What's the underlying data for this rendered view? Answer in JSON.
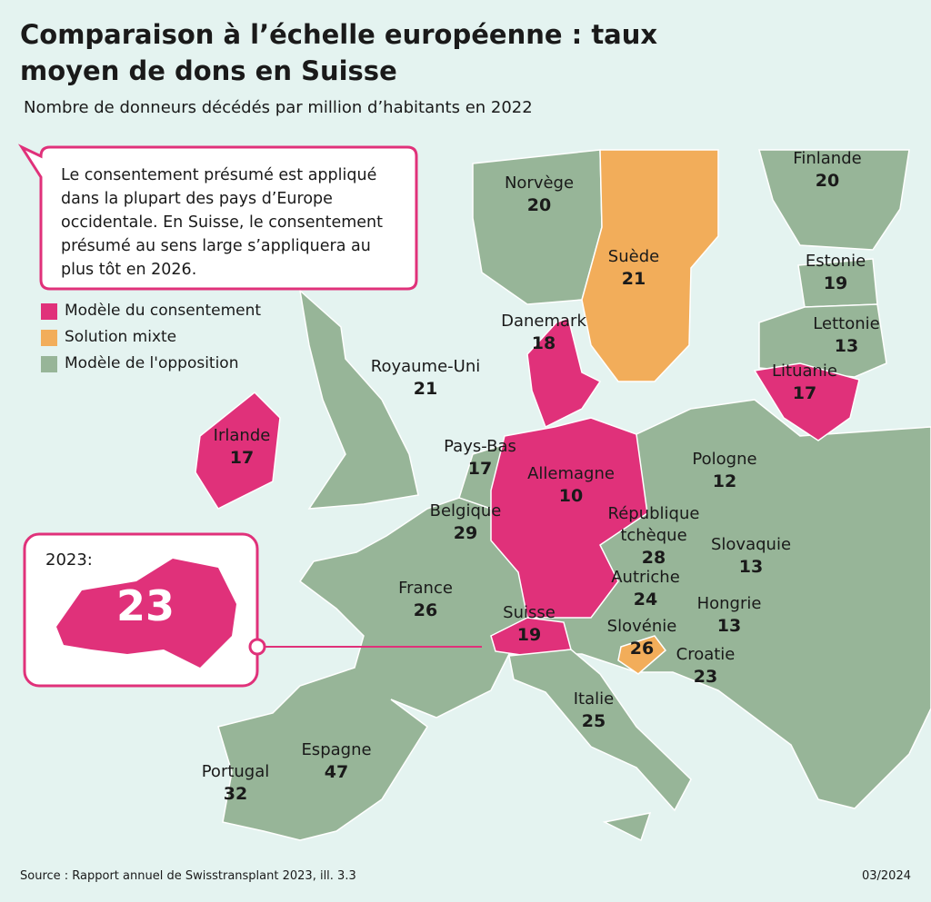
{
  "title": "Comparaison à l’échelle européenne : taux moyen de dons en Suisse",
  "subtitle": "Nombre de donneurs décédés par million d’habitants en 2022",
  "callout": "Le consentement présumé est appliqué dans la plupart des pays d’Europe occidentale. En Suisse, le consentement présumé au sens large s’appliquera au plus tôt en 2026.",
  "legend": [
    {
      "label": "Modèle du consentement",
      "color": "#e0317a"
    },
    {
      "label": "Solution mixte",
      "color": "#f2ad5a"
    },
    {
      "label": "Modèle de l'opposition",
      "color": "#97b598"
    }
  ],
  "inset": {
    "label": "2023:",
    "value": 23
  },
  "countries": [
    {
      "name": "Norvège",
      "value": 20,
      "model": 2
    },
    {
      "name": "Suède",
      "value": 21,
      "model": 1
    },
    {
      "name": "Finlande",
      "value": 20,
      "model": 2
    },
    {
      "name": "Estonie",
      "value": 19,
      "model": 2
    },
    {
      "name": "Lettonie",
      "value": 13,
      "model": 2
    },
    {
      "name": "Lituanie",
      "value": 17,
      "model": 0
    },
    {
      "name": "Danemark",
      "value": 18,
      "model": 0
    },
    {
      "name": "Royaume-Uni",
      "value": 21,
      "model": 2
    },
    {
      "name": "Irlande",
      "value": 17,
      "model": 0
    },
    {
      "name": "Pays-Bas",
      "value": 17,
      "model": 2
    },
    {
      "name": "Allemagne",
      "value": 10,
      "model": 0
    },
    {
      "name": "Pologne",
      "value": 12,
      "model": 2
    },
    {
      "name": "Belgique",
      "value": 29,
      "model": 2
    },
    {
      "name": "République tchèque",
      "value": 28,
      "model": 2
    },
    {
      "name": "Slovaquie",
      "value": 13,
      "model": 2
    },
    {
      "name": "Autriche",
      "value": 24,
      "model": 2
    },
    {
      "name": "Hongrie",
      "value": 13,
      "model": 2
    },
    {
      "name": "France",
      "value": 26,
      "model": 2
    },
    {
      "name": "Suisse",
      "value": 19,
      "model": 0
    },
    {
      "name": "Slovénie",
      "value": 26,
      "model": 1
    },
    {
      "name": "Croatie",
      "value": 23,
      "model": 2
    },
    {
      "name": "Italie",
      "value": 25,
      "model": 2
    },
    {
      "name": "Espagne",
      "value": 47,
      "model": 2
    },
    {
      "name": "Portugal",
      "value": 32,
      "model": 2
    }
  ],
  "source": "Source : Rapport annuel de Swisstransplant 2023, ill. 3.3",
  "date": "03/2024"
}
